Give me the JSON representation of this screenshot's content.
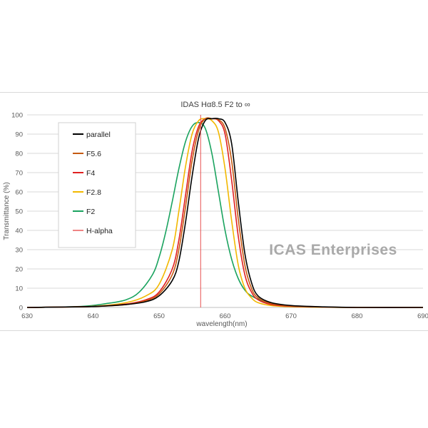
{
  "chart_data": {
    "type": "line",
    "title": "IDAS    Hα8.5    F2 to ∞",
    "xlabel": "wavelength(nm)",
    "ylabel": "Transmittance (%)",
    "xlim": [
      630,
      690
    ],
    "ylim": [
      0,
      100
    ],
    "x_ticks": [
      "630",
      "640",
      "650",
      "660",
      "670",
      "680",
      "690"
    ],
    "y_ticks": [
      "0",
      "10",
      "20",
      "30",
      "40",
      "50",
      "60",
      "70",
      "80",
      "90",
      "100"
    ],
    "grid": "horizontal",
    "legend_position": "upper-left",
    "watermark": "ICAS Enterprises",
    "series": [
      {
        "name": "parallel",
        "color": "#000000",
        "x": [
          630,
          640,
          645,
          648,
          650,
          652,
          653,
          654,
          655,
          656,
          657,
          658,
          659,
          660,
          661,
          662,
          663,
          664,
          665,
          667,
          670,
          675,
          680,
          690
        ],
        "y": [
          0,
          0.5,
          1.5,
          3,
          6,
          14,
          24,
          44,
          68,
          88,
          97,
          98,
          98,
          96,
          85,
          55,
          28,
          13,
          6,
          2.5,
          1,
          0.3,
          0,
          0
        ]
      },
      {
        "name": "F5.6",
        "color": "#c55a11",
        "x": [
          630,
          640,
          645,
          648,
          650,
          652,
          653,
          654,
          655,
          656,
          657,
          658,
          659,
          660,
          661,
          662,
          663,
          664,
          665,
          667,
          670,
          675,
          680,
          690
        ],
        "y": [
          0,
          0.5,
          1.5,
          3.5,
          7,
          17,
          30,
          52,
          76,
          92,
          98,
          98,
          97.5,
          93,
          76,
          46,
          22,
          10,
          5,
          2,
          0.8,
          0.2,
          0,
          0
        ]
      },
      {
        "name": "F4",
        "color": "#e02020",
        "x": [
          630,
          640,
          645,
          648,
          650,
          652,
          653,
          654,
          655,
          656,
          657,
          658,
          659,
          660,
          661,
          662,
          663,
          664,
          665,
          667,
          670,
          675,
          680,
          690
        ],
        "y": [
          0,
          0.5,
          1.8,
          4,
          8,
          20,
          35,
          58,
          81,
          94,
          98,
          98,
          97,
          90,
          66,
          37,
          17,
          8,
          4,
          1.5,
          0.6,
          0.2,
          0,
          0
        ]
      },
      {
        "name": "F2.8",
        "color": "#f2b800",
        "x": [
          630,
          640,
          645,
          648,
          650,
          652,
          653,
          654,
          655,
          656,
          657,
          658,
          659,
          660,
          661,
          662,
          663,
          664,
          665,
          667,
          670,
          675,
          680,
          690
        ],
        "y": [
          0,
          0.6,
          2.5,
          6,
          12,
          30,
          50,
          73,
          90,
          97,
          98,
          97,
          91,
          72,
          45,
          22,
          10,
          5,
          2.5,
          1,
          0.4,
          0.1,
          0,
          0
        ]
      },
      {
        "name": "F2",
        "color": "#1aa35f",
        "x": [
          630,
          638,
          642,
          645,
          647,
          649,
          650,
          651,
          652,
          653,
          654,
          655,
          656,
          657,
          658,
          659,
          660,
          661,
          662,
          663,
          664,
          666,
          668,
          672,
          680,
          690
        ],
        "y": [
          0,
          0.5,
          2,
          4,
          8,
          17,
          26,
          39,
          55,
          72,
          86,
          94,
          96,
          93,
          80,
          60,
          40,
          25,
          15,
          9,
          6,
          3,
          1.5,
          0.5,
          0,
          0
        ]
      }
    ],
    "reference_line": {
      "name": "H-alpha",
      "x": 656.3,
      "color": "#e8504f"
    }
  }
}
